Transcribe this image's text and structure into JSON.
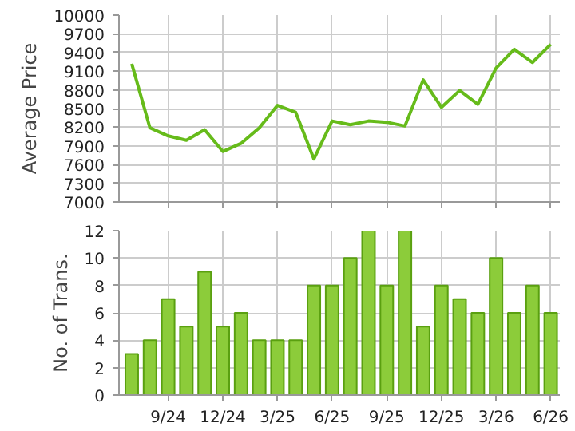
{
  "chart_data": [
    {
      "type": "line",
      "ylabel": "Average Price",
      "categories": [
        null,
        null,
        null,
        null,
        null,
        null,
        null,
        null,
        null,
        null,
        null,
        null,
        null,
        null,
        null,
        null,
        null,
        null,
        null,
        null,
        null,
        null,
        null,
        null
      ],
      "values": [
        9220,
        8190,
        8060,
        7990,
        8160,
        7810,
        7940,
        8190,
        8550,
        8440,
        7690,
        8300,
        8240,
        8300,
        8280,
        8220,
        8960,
        8520,
        8790,
        8570,
        9150,
        9450,
        9240,
        9530
      ],
      "color": "#66bb1a",
      "ylim": [
        7000,
        10000
      ],
      "yticks": [
        7000,
        7300,
        7600,
        7900,
        8200,
        8500,
        8800,
        9100,
        9400,
        9700,
        10000
      ],
      "grid": true,
      "tick_labels": "y",
      "marker": "none",
      "line_style": "solid"
    },
    {
      "type": "bar",
      "ylabel": "No. of Trans.",
      "categories": [
        null,
        null,
        "9/24",
        null,
        null,
        "12/24",
        null,
        null,
        "3/25",
        null,
        null,
        "6/25",
        null,
        null,
        "9/25",
        null,
        null,
        "12/25",
        null,
        null,
        "3/26",
        null,
        null,
        "6/26"
      ],
      "values": [
        3,
        4,
        7,
        5,
        9,
        5,
        6,
        4,
        4,
        4,
        8,
        8,
        10,
        12,
        8,
        12,
        5,
        8,
        7,
        6,
        10,
        6,
        8,
        6
      ],
      "color": "#8ccc3a",
      "ylim": [
        0,
        12
      ],
      "yticks": [
        0,
        2,
        4,
        6,
        8,
        10,
        12
      ],
      "grid": true
    }
  ]
}
